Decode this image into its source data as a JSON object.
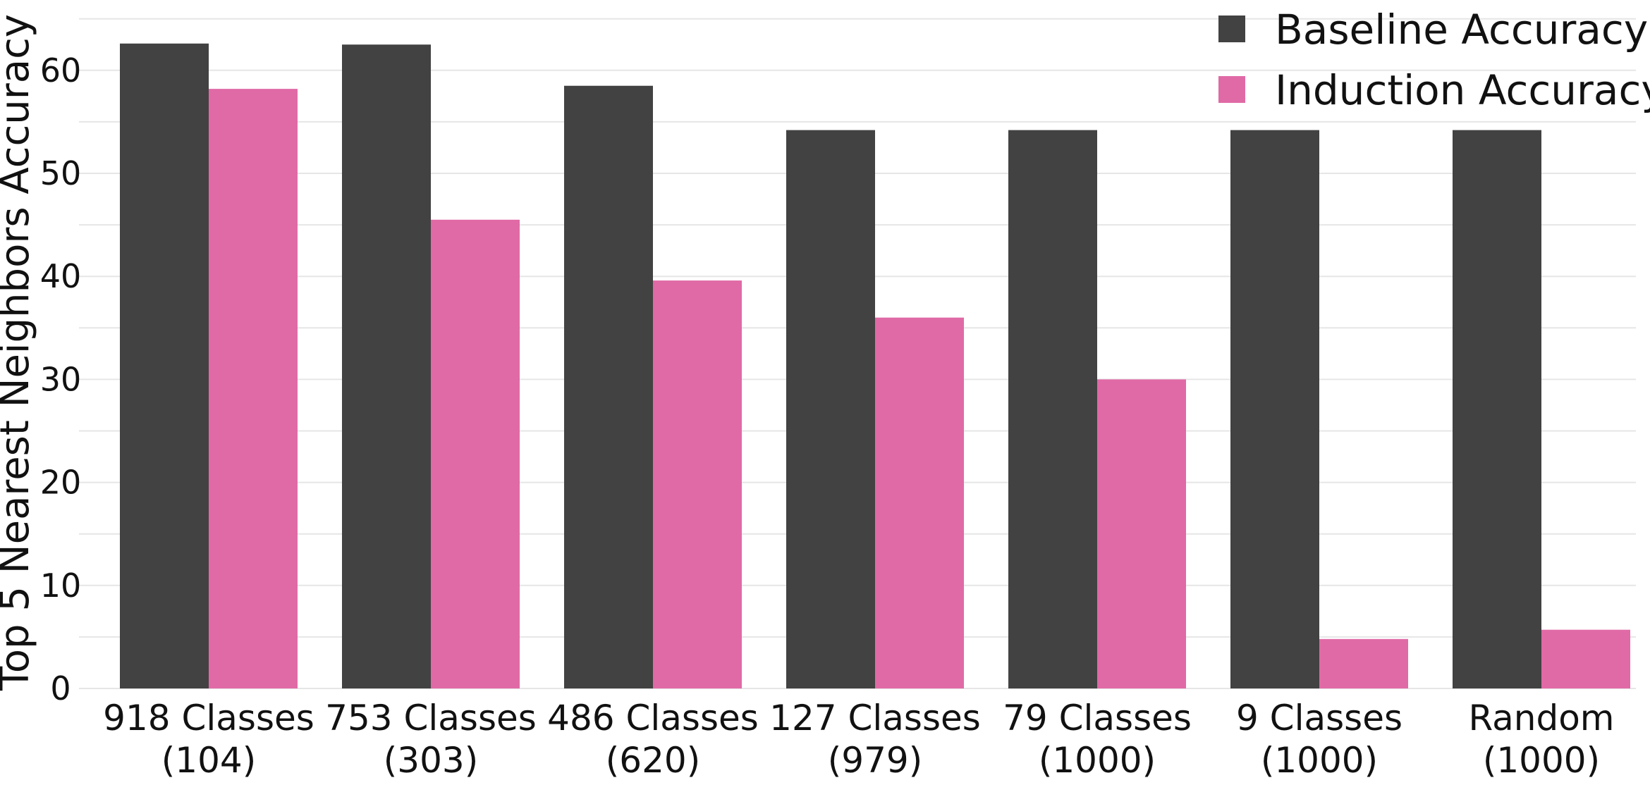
{
  "chart_data": {
    "type": "bar",
    "categories": [
      [
        "918 Classes",
        "(104)"
      ],
      [
        "753 Classes",
        "(303)"
      ],
      [
        "486 Classes",
        "(620)"
      ],
      [
        "127 Classes",
        "(979)"
      ],
      [
        "79 Classes",
        "(1000)"
      ],
      [
        "9 Classes",
        "(1000)"
      ],
      [
        "Random",
        "(1000)"
      ]
    ],
    "series": [
      {
        "name": "Baseline Accuracy",
        "color": "#424242",
        "values": [
          62.6,
          62.5,
          58.5,
          54.2,
          54.2,
          54.2,
          54.2
        ]
      },
      {
        "name": "Induction Accuracy",
        "color": "#e06aa6",
        "values": [
          58.2,
          45.5,
          39.6,
          36.0,
          30.0,
          4.8,
          5.7
        ]
      }
    ],
    "title": "",
    "xlabel": "",
    "ylabel": "Top 5 Nearest Neighbors Accuracy",
    "ylim": [
      0,
      65
    ],
    "yticks": [
      0,
      10,
      20,
      30,
      40,
      50,
      60
    ],
    "grid": true,
    "legend_position": "top-right"
  }
}
